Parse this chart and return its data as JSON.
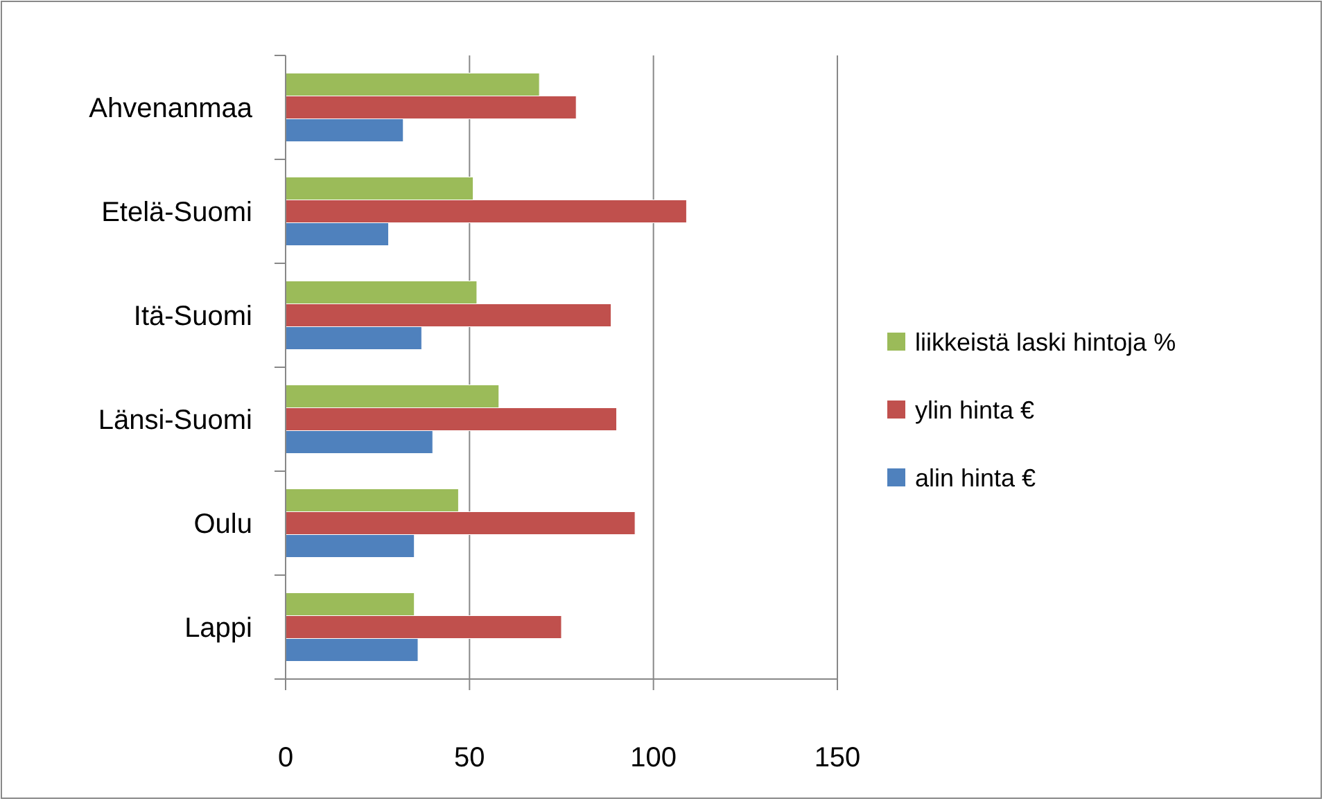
{
  "chart_data": {
    "type": "bar",
    "orientation": "horizontal",
    "categories": [
      "Ahvenanmaa",
      "Etelä-Suomi",
      "Itä-Suomi",
      "Länsi-Suomi",
      "Oulu",
      "Lappi"
    ],
    "series": [
      {
        "name": "alin hinta €",
        "color": "#4f81bd",
        "values": [
          32,
          28,
          37,
          40,
          35,
          36
        ]
      },
      {
        "name": "ylin hinta €",
        "color": "#c0504d",
        "values": [
          79,
          109,
          88.5,
          90,
          95,
          75
        ]
      },
      {
        "name": "liikkeistä laski hintoja %",
        "color": "#9bbb59",
        "values": [
          69,
          51,
          52,
          58,
          47,
          35
        ]
      }
    ],
    "xlim": [
      0,
      150
    ],
    "xticks": [
      0,
      50,
      100,
      150
    ],
    "grid": "x",
    "legend": "right"
  }
}
